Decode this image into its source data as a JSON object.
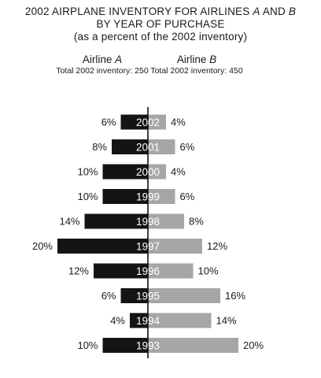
{
  "chart_data": {
    "type": "bar",
    "orientation": "horizontal-back-to-back",
    "title_lines": [
      "2002 AIRPLANE INVENTORY FOR AIRLINES A AND B",
      "BY YEAR OF PURCHASE",
      "(as a percent of the 2002 inventory)"
    ],
    "categories": [
      "2002",
      "2001",
      "2000",
      "1999",
      "1998",
      "1997",
      "1996",
      "1995",
      "1994",
      "1993"
    ],
    "series": [
      {
        "name": "Airline A",
        "subtitle": "Total 2002 inventory: 250",
        "values": [
          6,
          8,
          10,
          10,
          14,
          20,
          12,
          6,
          4,
          10
        ],
        "labels": [
          "6%",
          "8%",
          "10%",
          "10%",
          "14%",
          "20%",
          "12%",
          "6%",
          "4%",
          "10%"
        ],
        "color": "#141414",
        "side": "left"
      },
      {
        "name": "Airline B",
        "subtitle": "Total 2002 inventory: 450",
        "values": [
          4,
          6,
          4,
          6,
          8,
          12,
          10,
          16,
          14,
          20
        ],
        "labels": [
          "4%",
          "6%",
          "4%",
          "6%",
          "8%",
          "12%",
          "10%",
          "16%",
          "14%",
          "20%"
        ],
        "color": "#a6a6a6",
        "side": "right"
      }
    ],
    "unit": "%",
    "grid": false,
    "legend": "none"
  }
}
